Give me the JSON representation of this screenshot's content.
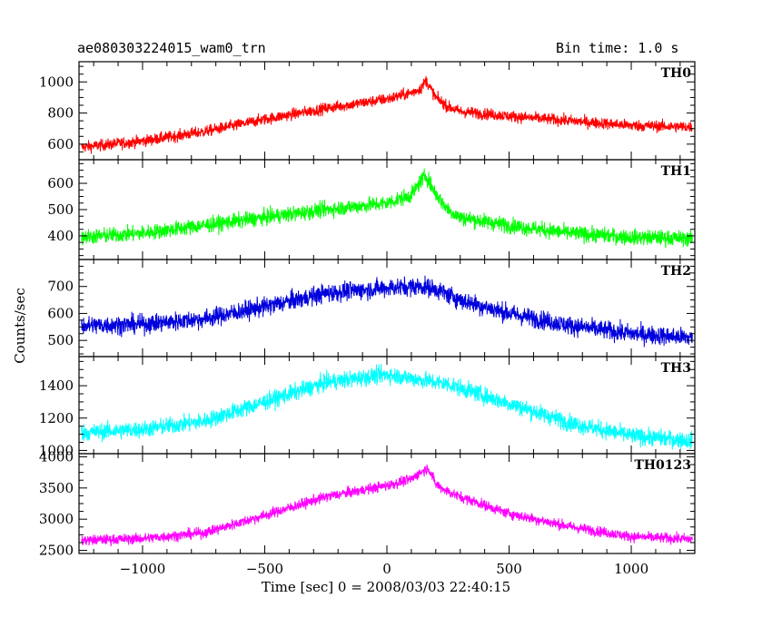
{
  "header": {
    "title": "ae080303224015_wam0_trn",
    "bin_time": "Bin time: 1.0 s"
  },
  "chart_data": {
    "type": "line",
    "xlabel": "Time [sec] 0 = 2008/03/03 22:40:15",
    "ylabel": "Counts/sec",
    "xlim": [
      -1260,
      1260
    ],
    "xticks": [
      -1000,
      -500,
      0,
      500,
      1000
    ],
    "xtick_labels": [
      "−1000",
      "−500",
      "0",
      "500",
      "1000"
    ],
    "panels": [
      {
        "name": "TH0",
        "color": "#ff0000",
        "ylim": [
          500,
          1130
        ],
        "yticks": [
          600,
          800,
          1000
        ],
        "profile_x": [
          -1250,
          -1000,
          -750,
          -500,
          -250,
          0,
          100,
          140,
          160,
          200,
          250,
          300,
          500,
          750,
          1000,
          1250
        ],
        "profile_y": [
          580,
          620,
          680,
          760,
          830,
          890,
          930,
          960,
          1010,
          900,
          840,
          810,
          780,
          750,
          720,
          710
        ],
        "noise": 35
      },
      {
        "name": "TH1",
        "color": "#00ff00",
        "ylim": [
          310,
          690
        ],
        "yticks": [
          400,
          500,
          600
        ],
        "profile_x": [
          -1250,
          -1000,
          -750,
          -500,
          -250,
          0,
          100,
          140,
          160,
          200,
          250,
          300,
          500,
          750,
          1000,
          1250
        ],
        "profile_y": [
          395,
          410,
          440,
          470,
          500,
          525,
          555,
          610,
          630,
          560,
          500,
          470,
          440,
          410,
          395,
          390
        ],
        "noise": 28
      },
      {
        "name": "TH2",
        "color": "#0000dd",
        "ylim": [
          440,
          800
        ],
        "yticks": [
          500,
          600,
          700
        ],
        "profile_x": [
          -1250,
          -1000,
          -750,
          -500,
          -250,
          0,
          100,
          150,
          200,
          300,
          500,
          750,
          1000,
          1250
        ],
        "profile_y": [
          555,
          560,
          580,
          625,
          675,
          695,
          700,
          700,
          690,
          650,
          600,
          555,
          525,
          510
        ],
        "noise": 33
      },
      {
        "name": "TH3",
        "color": "#00ffff",
        "ylim": [
          980,
          1580
        ],
        "yticks": [
          1000,
          1200,
          1400
        ],
        "profile_x": [
          -1250,
          -1000,
          -750,
          -500,
          -250,
          0,
          250,
          500,
          750,
          1000,
          1250
        ],
        "profile_y": [
          1110,
          1130,
          1180,
          1300,
          1420,
          1470,
          1410,
          1290,
          1170,
          1090,
          1060
        ],
        "noise": 50
      },
      {
        "name": "TH0123",
        "color": "#ff00ff",
        "ylim": [
          2450,
          4050
        ],
        "yticks": [
          2500,
          3000,
          3500,
          4000
        ],
        "profile_x": [
          -1250,
          -1000,
          -750,
          -500,
          -250,
          0,
          100,
          140,
          170,
          200,
          250,
          300,
          500,
          750,
          1000,
          1250
        ],
        "profile_y": [
          2660,
          2690,
          2780,
          3060,
          3360,
          3540,
          3640,
          3760,
          3820,
          3560,
          3440,
          3360,
          3090,
          2880,
          2720,
          2680
        ],
        "noise": 80
      }
    ]
  }
}
